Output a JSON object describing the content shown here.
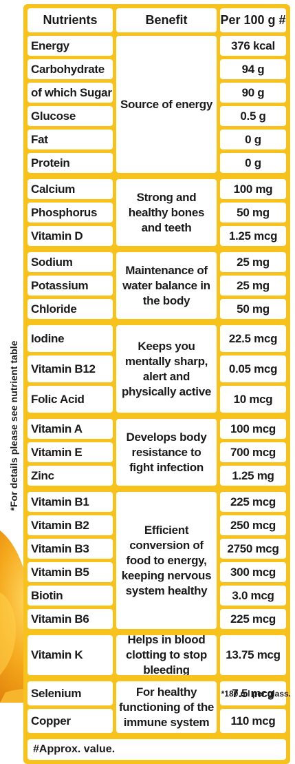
{
  "table": {
    "headers": [
      "Nutrients",
      "Benefit",
      "Per 100 g #"
    ],
    "groups": [
      {
        "benefit": "Source of energy",
        "rows": [
          {
            "nutrient": "Energy",
            "value": "376 kcal"
          },
          {
            "nutrient": "Carbohydrate",
            "value": "94 g"
          },
          {
            "nutrient": "of which Sugar",
            "value": "90 g"
          },
          {
            "nutrient": "Glucose",
            "value": "0.5 g"
          },
          {
            "nutrient": "Fat",
            "value": "0 g"
          },
          {
            "nutrient": "Protein",
            "value": "0 g"
          }
        ]
      },
      {
        "benefit": "Strong and healthy bones and teeth",
        "rows": [
          {
            "nutrient": "Calcium",
            "value": "100 mg"
          },
          {
            "nutrient": "Phosphorus",
            "value": "50 mg"
          },
          {
            "nutrient": "Vitamin D",
            "value": "1.25 mcg"
          }
        ]
      },
      {
        "benefit": "Maintenance of water balance in the body",
        "rows": [
          {
            "nutrient": "Sodium",
            "value": "25 mg"
          },
          {
            "nutrient": "Potassium",
            "value": "25 mg"
          },
          {
            "nutrient": "Chloride",
            "value": "50 mg"
          }
        ]
      },
      {
        "benefit": "Keeps you mentally sharp, alert and physically active",
        "rows": [
          {
            "nutrient": "Iodine",
            "value": "22.5 mcg"
          },
          {
            "nutrient": "Vitamin B12",
            "value": "0.05 mcg"
          },
          {
            "nutrient": "Folic Acid",
            "value": "10 mcg"
          }
        ]
      },
      {
        "benefit": "Develops body resistance to fight infection",
        "rows": [
          {
            "nutrient": "Vitamin A",
            "value": "100 mcg"
          },
          {
            "nutrient": "Vitamin E",
            "value": "700 mcg"
          },
          {
            "nutrient": "Zinc",
            "value": "1.25 mg"
          }
        ]
      },
      {
        "benefit": "Efficient conversion of food to energy, keeping nervous system healthy",
        "rows": [
          {
            "nutrient": "Vitamin B1",
            "value": "225 mcg"
          },
          {
            "nutrient": "Vitamin B2",
            "value": "250 mcg"
          },
          {
            "nutrient": "Vitamin B3",
            "value": "2750 mcg"
          },
          {
            "nutrient": "Vitamin B5",
            "value": "300 mcg"
          },
          {
            "nutrient": "Biotin",
            "value": "3.0 mcg"
          },
          {
            "nutrient": "Vitamin B6",
            "value": "225 mcg"
          }
        ]
      },
      {
        "benefit": "Helps in blood clotting to stop bleeding",
        "rows": [
          {
            "nutrient": "Vitamin K",
            "value": "13.75 mcg"
          }
        ]
      },
      {
        "benefit": "For healthy functioning of the immune system",
        "rows": [
          {
            "nutrient": "Selenium",
            "value": "7.5 mcg"
          },
          {
            "nutrient": "Copper",
            "value": "110 mcg"
          }
        ]
      }
    ],
    "approx_note": "#Approx. value."
  },
  "side_note": "*For details please see nutrient table",
  "footnote": "*180 ml per glass.",
  "colors": {
    "panel": "#f8c21c",
    "cell": "#ffffff",
    "splash": "#f3a21a"
  }
}
